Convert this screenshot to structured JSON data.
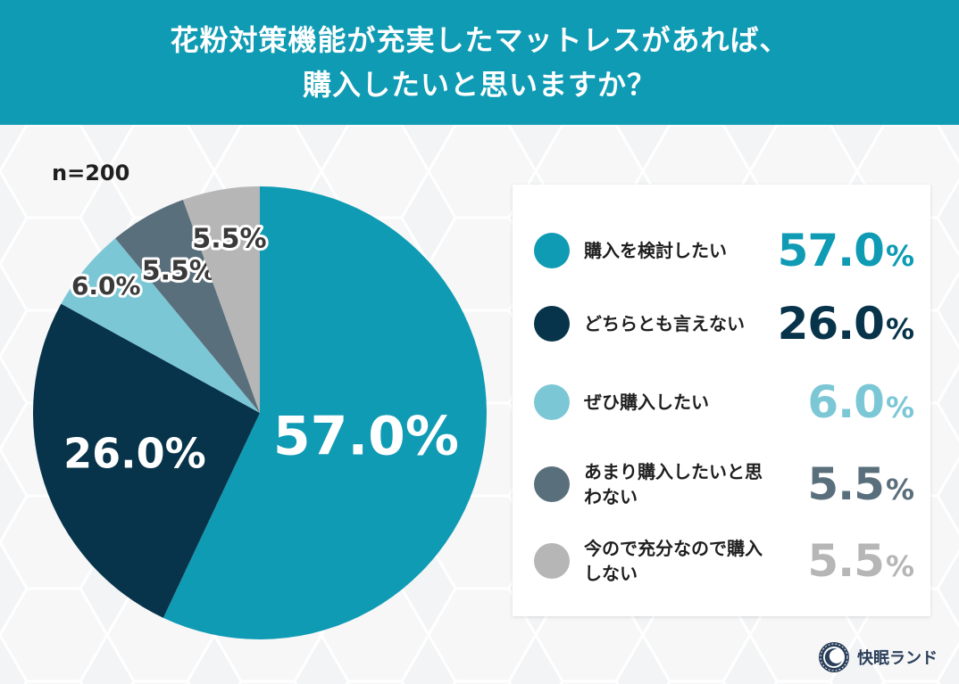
{
  "header": {
    "title_line1": "花粉対策機能が充実したマットレスがあれば、",
    "title_line2": "購入したいと思いますか？"
  },
  "sample_size": "n=200",
  "brand": {
    "name": "快眠ランド",
    "icon": "sleeping-moon-logo-icon"
  },
  "colors": {
    "header": "#0f9bb4",
    "s1": "#0f9bb4",
    "s2": "#07344a",
    "s3": "#7cc7d6",
    "s4": "#5a6f7c",
    "s5": "#b6b6b6"
  },
  "legend": [
    {
      "label": "購入を検討したい",
      "value": "57.0",
      "unit": "%"
    },
    {
      "label": "どちらとも言えない",
      "value": "26.0",
      "unit": "%"
    },
    {
      "label": "ぜひ購入したい",
      "value": "6.0",
      "unit": "%"
    },
    {
      "label": "あまり購入したいと思わない",
      "value": "5.5",
      "unit": "%"
    },
    {
      "label": "今ので充分なので購入しない",
      "value": "5.5",
      "unit": "%"
    }
  ],
  "chart_data": {
    "type": "pie",
    "title": "花粉対策機能が充実したマットレスがあれば、購入したいと思いますか？",
    "categories": [
      "購入を検討したい",
      "どちらとも言えない",
      "ぜひ購入したい",
      "あまり購入したいと思わない",
      "今ので充分なので購入しない"
    ],
    "values": [
      57.0,
      26.0,
      6.0,
      5.5,
      5.5
    ],
    "slice_labels": [
      "57.0%",
      "26.0%",
      "6.0%",
      "5.5%",
      "5.5%"
    ],
    "unit": "%",
    "legend_position": "right"
  }
}
